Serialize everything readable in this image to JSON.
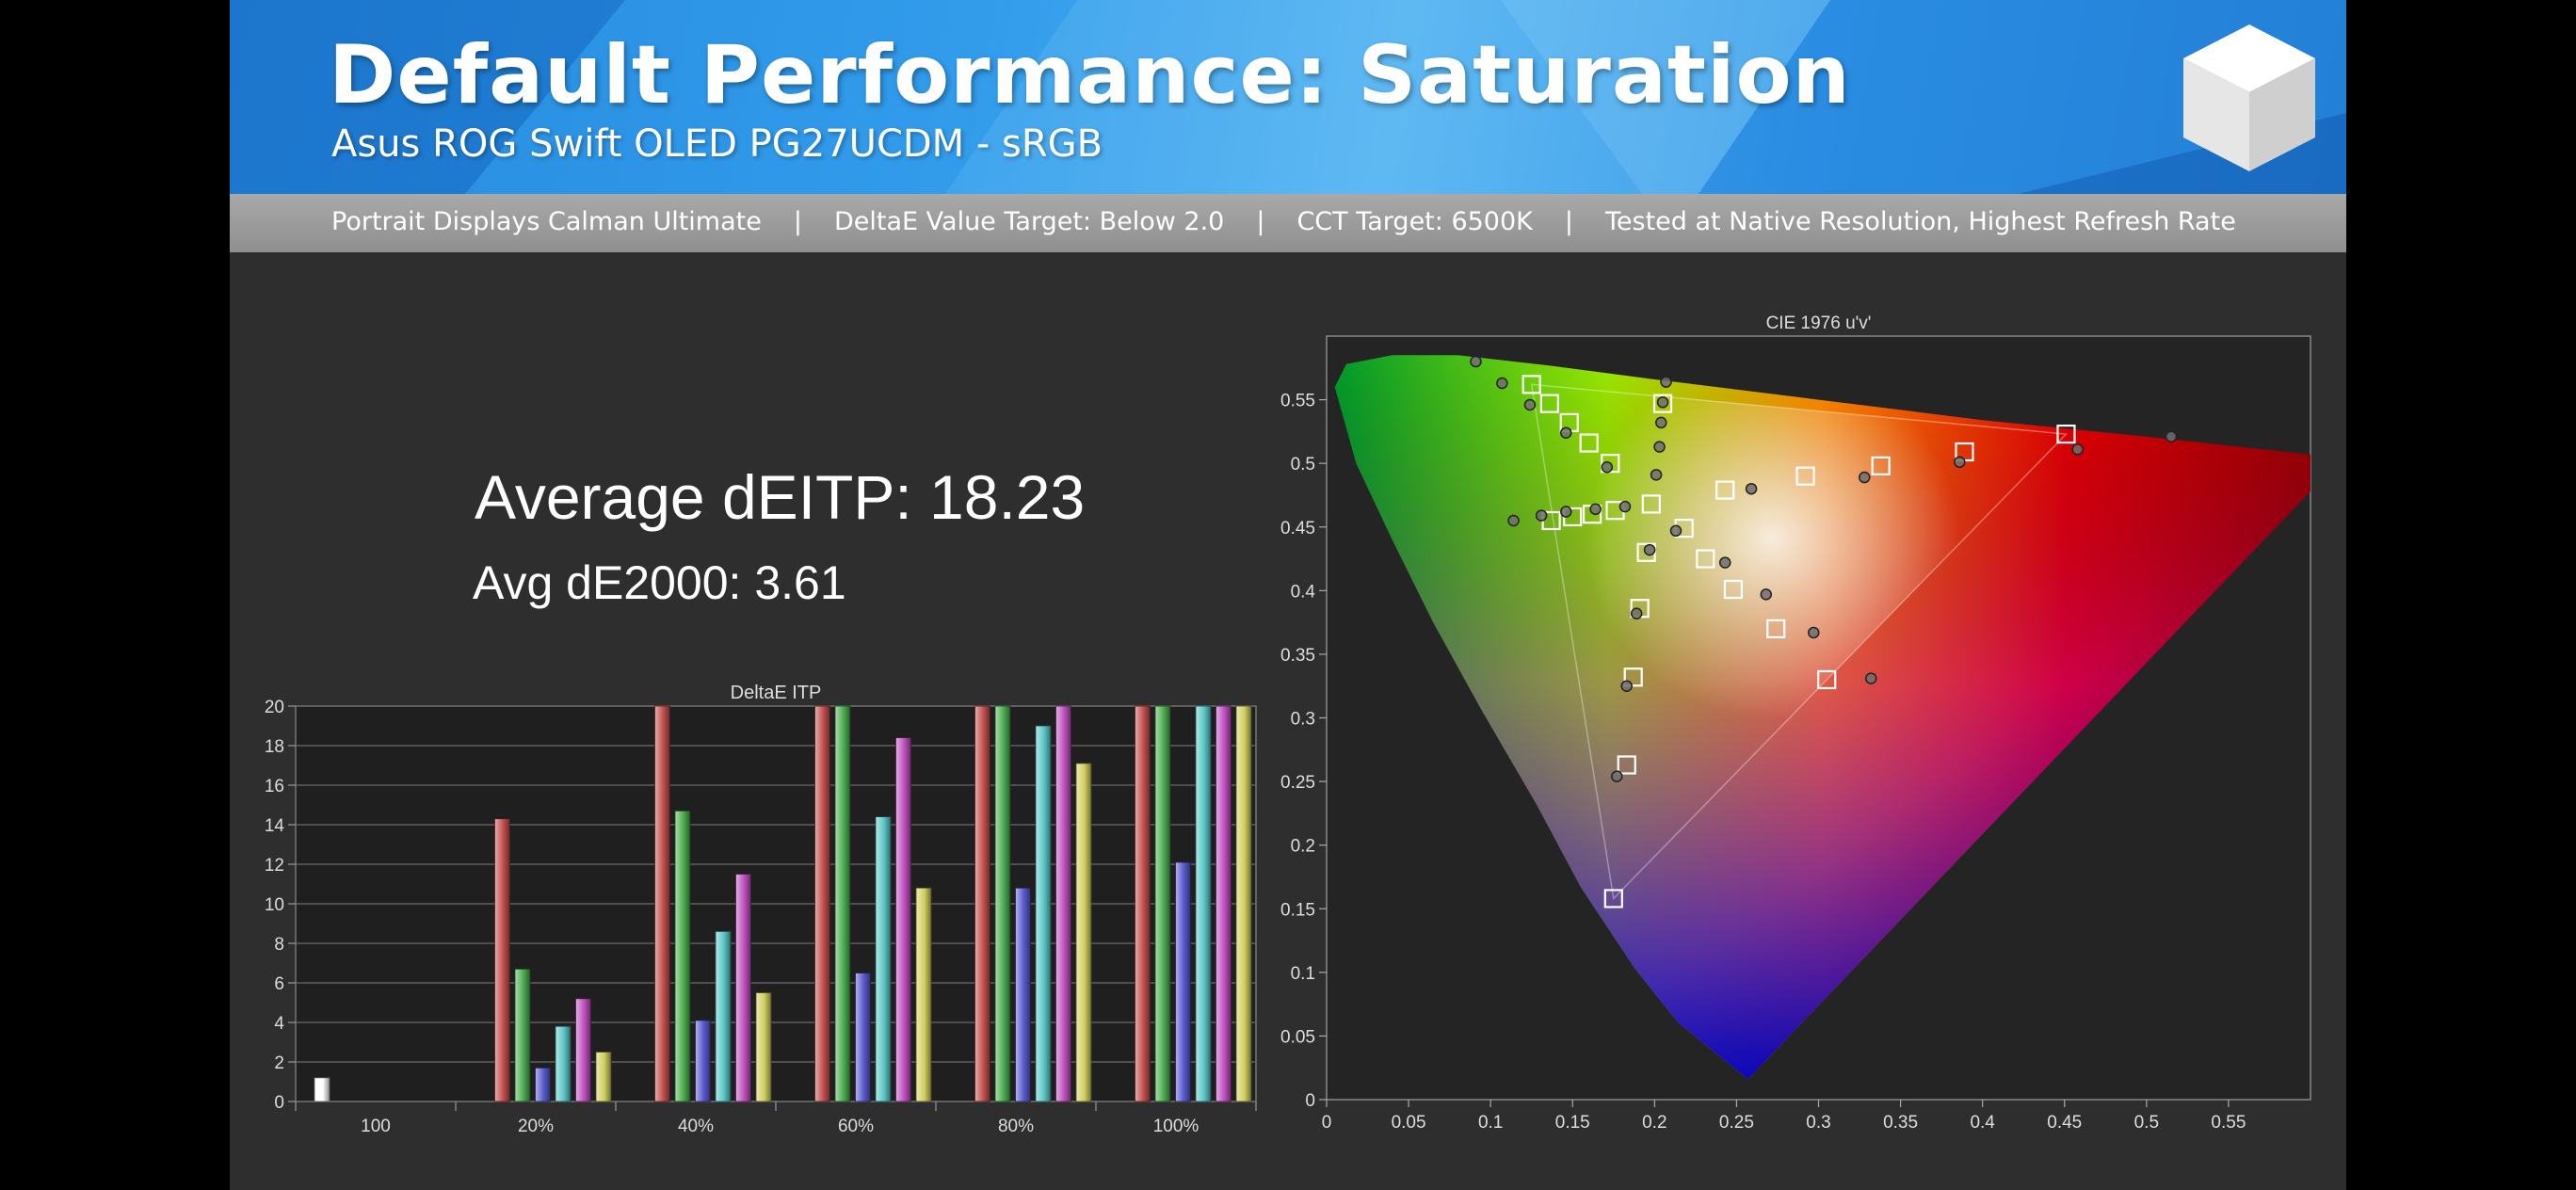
{
  "header": {
    "title": "Default Performance: Saturation",
    "subtitle": "Asus ROG Swift OLED PG27UCDM - sRGB"
  },
  "info_bar": {
    "items": [
      "Portrait Displays Calman Ultimate",
      "DeltaE Value Target: Below 2.0",
      "CCT Target: 6500K",
      "Tested at Native Resolution, Highest Refresh Rate"
    ],
    "separator": "|"
  },
  "averages": {
    "ditp": "Average dEITP: 18.23",
    "de2000": "Avg dE2000: 3.61"
  },
  "colors": {
    "red": "#c45050",
    "green": "#4caf50",
    "blue": "#5a5ad0",
    "cyan": "#5cc8c8",
    "magenta": "#c050c0",
    "yellow": "#d0d060",
    "white": "#ffffff"
  },
  "chart_data": [
    {
      "type": "bar",
      "title": "DeltaE ITP",
      "ylim": [
        0,
        20
      ],
      "yticks": [
        "0",
        "2",
        "4",
        "6",
        "8",
        "10",
        "12",
        "14",
        "16",
        "18",
        "20"
      ],
      "grid": true,
      "categories": [
        "100",
        "20%",
        "40%",
        "60%",
        "80%",
        "100%"
      ],
      "series": [
        {
          "color_key": "white",
          "values": [
            1.2,
            null,
            null,
            null,
            null,
            null
          ]
        },
        {
          "color_key": "red",
          "values": [
            null,
            14.3,
            20,
            20,
            20,
            20
          ]
        },
        {
          "color_key": "green",
          "values": [
            null,
            6.7,
            14.7,
            20,
            20,
            20
          ]
        },
        {
          "color_key": "blue",
          "values": [
            null,
            1.7,
            4.1,
            6.5,
            10.8,
            12.1
          ]
        },
        {
          "color_key": "cyan",
          "values": [
            null,
            3.8,
            8.6,
            14.4,
            19.0,
            20
          ]
        },
        {
          "color_key": "magenta",
          "values": [
            null,
            5.2,
            11.5,
            18.4,
            20,
            20
          ]
        },
        {
          "color_key": "yellow",
          "values": [
            null,
            2.5,
            5.5,
            10.8,
            17.1,
            20
          ]
        }
      ]
    },
    {
      "type": "scatter",
      "title": "CIE 1976 u'v'",
      "xlim": [
        0,
        0.6
      ],
      "ylim": [
        0,
        0.6
      ],
      "xticks": [
        "0",
        "0.05",
        "0.1",
        "0.15",
        "0.2",
        "0.25",
        "0.3",
        "0.35",
        "0.4",
        "0.45",
        "0.5",
        "0.55"
      ],
      "yticks": [
        "0",
        "0.05",
        "0.1",
        "0.15",
        "0.2",
        "0.25",
        "0.3",
        "0.35",
        "0.4",
        "0.45",
        "0.5",
        "0.55"
      ],
      "gamut_triangle": {
        "red": [
          0.451,
          0.523
        ],
        "green": [
          0.125,
          0.562
        ],
        "blue": [
          0.175,
          0.158
        ]
      },
      "targets": [
        [
          0.198,
          0.468
        ],
        [
          0.451,
          0.523
        ],
        [
          0.389,
          0.509
        ],
        [
          0.338,
          0.498
        ],
        [
          0.292,
          0.49
        ],
        [
          0.243,
          0.479
        ],
        [
          0.125,
          0.562
        ],
        [
          0.136,
          0.547
        ],
        [
          0.148,
          0.532
        ],
        [
          0.16,
          0.516
        ],
        [
          0.173,
          0.5
        ],
        [
          0.175,
          0.158
        ],
        [
          0.183,
          0.263
        ],
        [
          0.187,
          0.332
        ],
        [
          0.191,
          0.386
        ],
        [
          0.195,
          0.43
        ],
        [
          0.137,
          0.455
        ],
        [
          0.15,
          0.458
        ],
        [
          0.162,
          0.46
        ],
        [
          0.176,
          0.463
        ],
        [
          0.305,
          0.33
        ],
        [
          0.274,
          0.37
        ],
        [
          0.248,
          0.401
        ],
        [
          0.231,
          0.425
        ],
        [
          0.218,
          0.449
        ],
        [
          0.205,
          0.547
        ]
      ],
      "measured": [
        [
          0.197,
          0.432
        ],
        [
          0.515,
          0.521
        ],
        [
          0.458,
          0.511
        ],
        [
          0.386,
          0.501
        ],
        [
          0.328,
          0.489
        ],
        [
          0.259,
          0.48
        ],
        [
          0.091,
          0.58
        ],
        [
          0.107,
          0.563
        ],
        [
          0.124,
          0.546
        ],
        [
          0.146,
          0.524
        ],
        [
          0.171,
          0.497
        ],
        [
          0.177,
          0.254
        ],
        [
          0.183,
          0.325
        ],
        [
          0.189,
          0.382
        ],
        [
          0.213,
          0.447
        ],
        [
          0.114,
          0.455
        ],
        [
          0.131,
          0.459
        ],
        [
          0.146,
          0.462
        ],
        [
          0.164,
          0.464
        ],
        [
          0.182,
          0.466
        ],
        [
          0.332,
          0.331
        ],
        [
          0.297,
          0.367
        ],
        [
          0.268,
          0.397
        ],
        [
          0.243,
          0.422
        ],
        [
          0.207,
          0.564
        ],
        [
          0.205,
          0.548
        ],
        [
          0.204,
          0.532
        ],
        [
          0.203,
          0.513
        ],
        [
          0.201,
          0.491
        ]
      ]
    }
  ]
}
